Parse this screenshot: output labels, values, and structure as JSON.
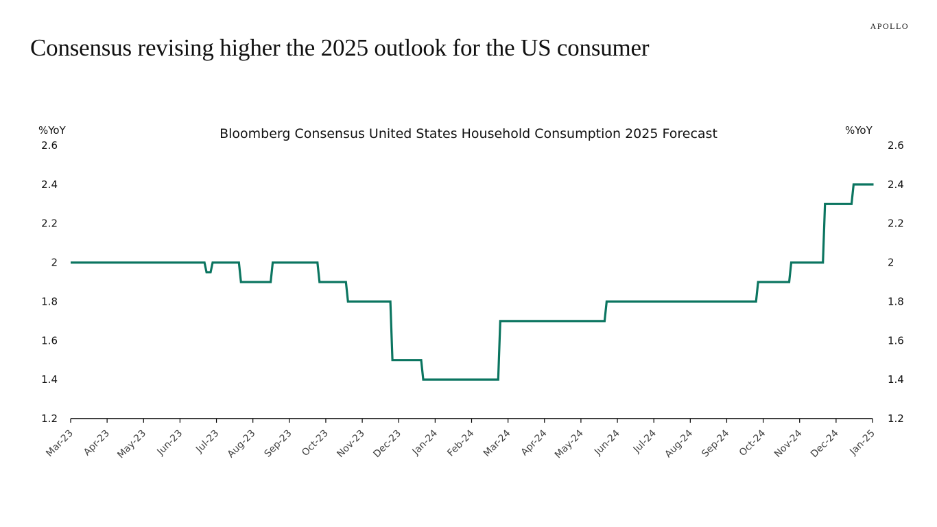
{
  "brand": "APOLLO",
  "headline": "Consensus revising higher the 2025 outlook for the US consumer",
  "chart_data": {
    "type": "line",
    "step": true,
    "title": "Bloomberg Consensus United States Household Consumption 2025 Forecast",
    "xlabel": "",
    "ylabel_left": "%YoY",
    "ylabel_right": "%YoY",
    "ylim": [
      1.2,
      2.6
    ],
    "y_ticks": [
      1.2,
      1.4,
      1.6,
      1.8,
      2,
      2.2,
      2.4,
      2.6
    ],
    "y_tick_labels": [
      "1.2",
      "1.4",
      "1.6",
      "1.8",
      "2",
      "2.2",
      "2.4",
      "2.6"
    ],
    "x_range_months": [
      0,
      22
    ],
    "x_tick_labels": [
      "Mar-23",
      "Apr-23",
      "May-23",
      "Jun-23",
      "Jul-23",
      "Aug-23",
      "Sep-23",
      "Oct-23",
      "Nov-23",
      "Dec-23",
      "Jan-24",
      "Feb-24",
      "Mar-24",
      "Apr-24",
      "May-24",
      "Jun-24",
      "Jul-24",
      "Aug-24",
      "Sep-24",
      "Oct-24",
      "Nov-24",
      "Dec-24",
      "Jan-25"
    ],
    "grid": false,
    "legend": "none",
    "color": "#0b7560",
    "series": [
      {
        "name": "Bloomberg Consensus US Household Consumption 2025 Forecast",
        "points": [
          {
            "date": "2023-03-01",
            "value": 2.0
          },
          {
            "date": "2023-06-22",
            "value": 1.95
          },
          {
            "date": "2023-06-27",
            "value": 2.0
          },
          {
            "date": "2023-07-21",
            "value": 1.9
          },
          {
            "date": "2023-08-17",
            "value": 2.0
          },
          {
            "date": "2023-09-25",
            "value": 1.9
          },
          {
            "date": "2023-10-19",
            "value": 1.8
          },
          {
            "date": "2023-11-25",
            "value": 1.5
          },
          {
            "date": "2023-12-21",
            "value": 1.4
          },
          {
            "date": "2024-02-23",
            "value": 1.7
          },
          {
            "date": "2024-05-22",
            "value": 1.8
          },
          {
            "date": "2024-09-26",
            "value": 1.9
          },
          {
            "date": "2024-10-24",
            "value": 2.0
          },
          {
            "date": "2024-11-21",
            "value": 2.3
          },
          {
            "date": "2024-12-15",
            "value": 2.4
          },
          {
            "date": "2025-01-01",
            "value": 2.4
          }
        ]
      }
    ]
  }
}
